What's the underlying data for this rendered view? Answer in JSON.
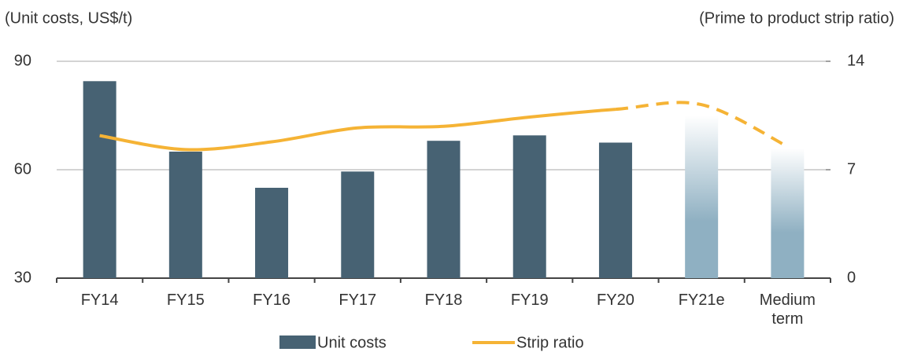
{
  "chart_data": {
    "type": "bar",
    "y_label": "(Unit costs, US$/t)",
    "y2_label": "(Prime to product strip ratio)",
    "categories": [
      "FY14",
      "FY15",
      "FY16",
      "FY17",
      "FY18",
      "FY19",
      "FY20",
      "FY21e",
      "Medium term"
    ],
    "series": [
      {
        "name": "Unit costs",
        "type": "bar",
        "color": "#476273",
        "projected_color": "#8fb0c2",
        "values": [
          84.5,
          65,
          55,
          59.5,
          68,
          69.5,
          67.5,
          75,
          66
        ]
      },
      {
        "name": "Strip ratio",
        "type": "line",
        "axis": "y2",
        "color": "#f5b335",
        "values": [
          9.2,
          8.3,
          8.8,
          9.7,
          9.8,
          10.4,
          10.9,
          11.2,
          8.5
        ]
      }
    ],
    "projected_from_index": 7,
    "ylim": [
      30,
      90
    ],
    "yticks": [
      30,
      60,
      90
    ],
    "y2lim": [
      0,
      14
    ],
    "y2ticks": [
      0,
      7,
      14
    ],
    "grid": true
  }
}
